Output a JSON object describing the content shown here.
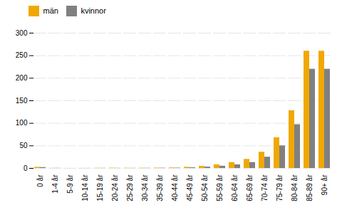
{
  "chart_data": {
    "type": "bar",
    "categories": [
      "0 år",
      "1-4 år",
      "5-9 år",
      "10-14 år",
      "15-19 år",
      "20-24 år",
      "25-29 år",
      "30-34 år",
      "35-39 år",
      "40-44 år",
      "45-49 år",
      "50-54 år",
      "55-59 år",
      "60-64 år",
      "65-69 år",
      "70-74 år",
      "75-79 år",
      "80-84 år",
      "85-89 år",
      "90+ år"
    ],
    "series": [
      {
        "name": "män",
        "color": "#f0a800",
        "values": [
          2.5,
          0.3,
          0.1,
          0.2,
          0.5,
          0.7,
          0.5,
          0.6,
          0.8,
          1.2,
          2.5,
          4.5,
          8.0,
          13.0,
          20.0,
          36.0,
          68.0,
          128.0,
          260.0,
          260.0
        ]
      },
      {
        "name": "kvinnor",
        "color": "#808080",
        "values": [
          2.0,
          0.3,
          0.1,
          0.2,
          0.3,
          0.3,
          0.3,
          0.4,
          0.6,
          0.8,
          1.5,
          3.0,
          5.0,
          8.0,
          13.0,
          25.0,
          50.0,
          97.0,
          220.0,
          220.0
        ]
      }
    ],
    "ylim": [
      0,
      300
    ],
    "yticks": [
      0,
      50,
      100,
      150,
      200,
      250,
      300
    ],
    "grid": true,
    "legend": "upper left"
  }
}
